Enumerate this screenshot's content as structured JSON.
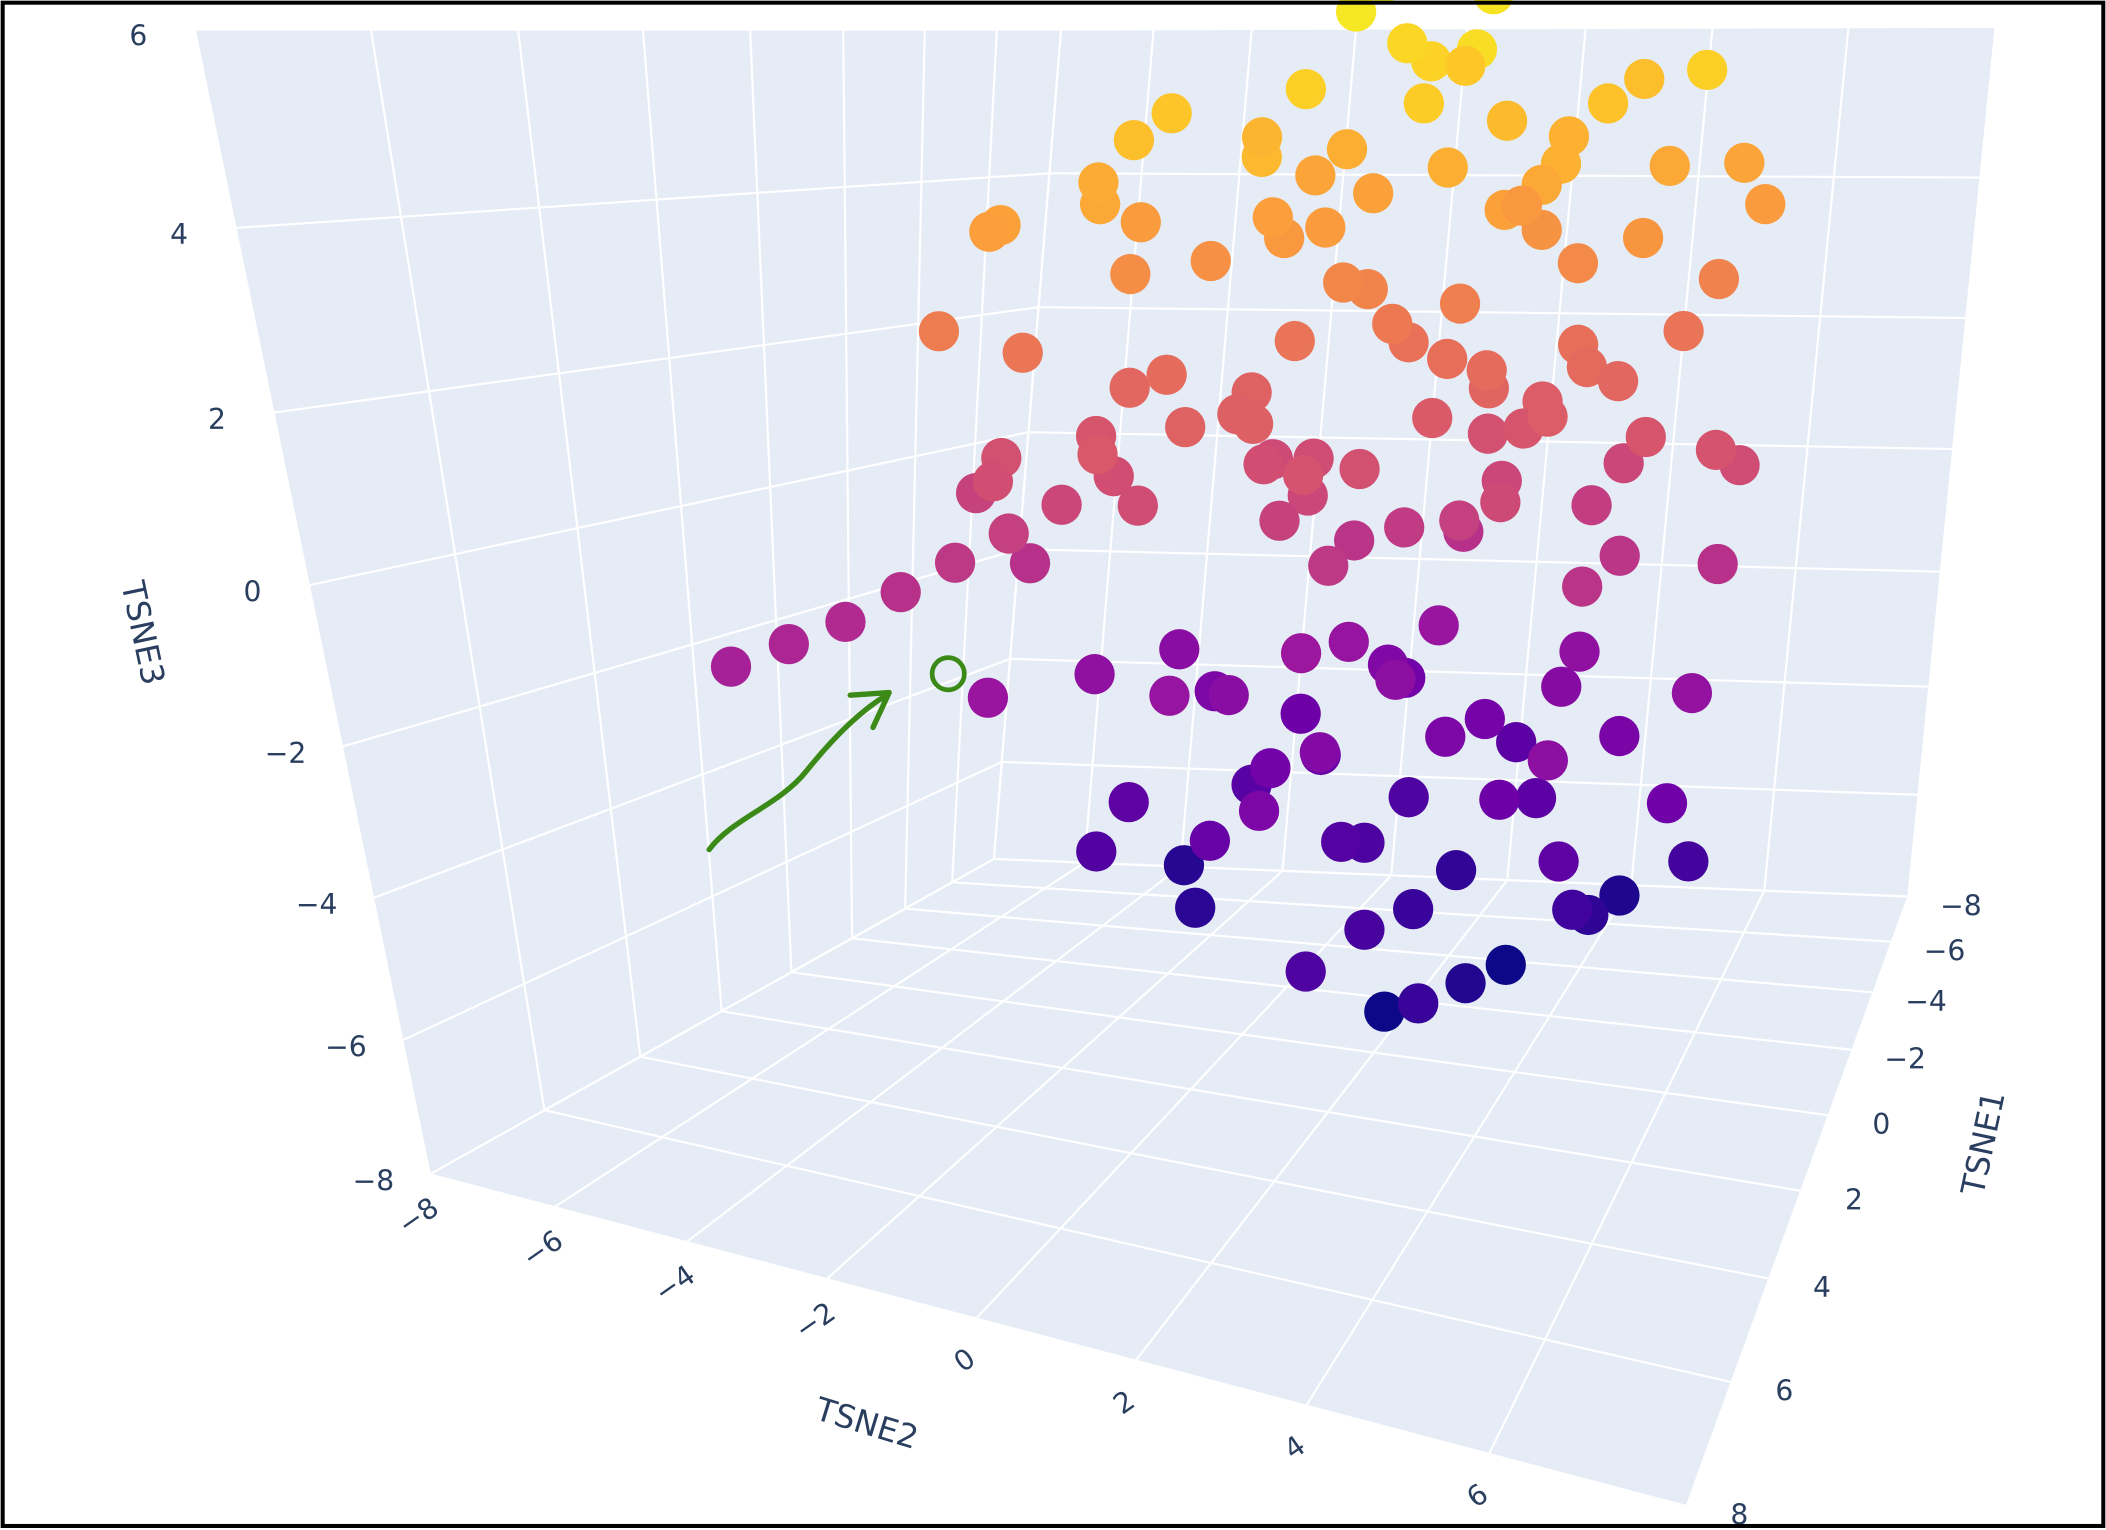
{
  "chart_data": {
    "type": "scatter3d",
    "xaxis_title": "TSNE1",
    "yaxis_title": "TSNE2",
    "zaxis_title": "TSNE3",
    "xlim": [
      -8,
      8
    ],
    "ylim": [
      -8,
      8
    ],
    "zlim": [
      -8,
      6
    ],
    "xticks": [
      {
        "value": -8,
        "label": "−8"
      },
      {
        "value": -6,
        "label": "−6"
      },
      {
        "value": -4,
        "label": "−4"
      },
      {
        "value": -2,
        "label": "−2"
      },
      0,
      2,
      4,
      6,
      8
    ],
    "yticks": [
      {
        "value": -8,
        "label": "−8"
      },
      {
        "value": -6,
        "label": "−6"
      },
      {
        "value": -4,
        "label": "−4"
      },
      {
        "value": -2,
        "label": "−2"
      },
      0,
      2,
      4,
      6
    ],
    "zticks": [
      {
        "value": -8,
        "label": "−8"
      },
      {
        "value": -6,
        "label": "−6"
      },
      {
        "value": -4,
        "label": "−4"
      },
      {
        "value": -2,
        "label": "−2"
      },
      0,
      2,
      4,
      6
    ],
    "grid": true,
    "colorscale": [
      "#0d0887",
      "#46039f",
      "#7201a8",
      "#9c179e",
      "#bd3786",
      "#d8576b",
      "#ed7953",
      "#fb9f3a",
      "#fdca26",
      "#f0f921"
    ],
    "x": [
      0,
      1,
      -1,
      2,
      -2,
      0,
      1,
      -1,
      3,
      -3,
      0,
      2,
      -2,
      1,
      -1,
      2,
      -3,
      0,
      3,
      -2,
      1,
      -1,
      4,
      -4,
      0,
      2,
      -2,
      1,
      -1,
      3,
      -3,
      0,
      4,
      -4,
      2,
      -2,
      0,
      1,
      -1,
      3,
      0,
      1,
      -1,
      2,
      -2,
      0,
      1,
      -1,
      3,
      -3,
      0,
      2,
      -2,
      1,
      -1,
      2,
      -3,
      0,
      3,
      -2,
      1,
      -1,
      4,
      -4,
      0,
      2,
      -2,
      1,
      -1,
      3,
      -3,
      0,
      4,
      -4,
      2,
      -2,
      0,
      1,
      -1,
      3,
      2,
      -2,
      1,
      -3,
      3,
      4,
      -4,
      0,
      2,
      -1,
      5,
      -5,
      1,
      3,
      0,
      -2,
      2,
      -1,
      1,
      0,
      5,
      4.5,
      4,
      3.5,
      3,
      2.5,
      2,
      1.5,
      0,
      1,
      -1,
      2,
      0,
      1,
      2,
      3,
      1,
      2,
      -1,
      0,
      3,
      -2,
      1,
      2,
      -1,
      0,
      3,
      1,
      2,
      0,
      -1,
      4,
      2,
      -2,
      1,
      3,
      -3,
      0,
      4,
      -1,
      2,
      3,
      1,
      -2,
      0,
      4,
      5,
      -3,
      2,
      1,
      -1,
      3,
      5,
      0,
      -4,
      4,
      -2,
      6
    ],
    "y": [
      1,
      2,
      0,
      3,
      2,
      3,
      -1,
      4,
      1,
      1,
      -2,
      0,
      -1,
      4,
      2,
      5,
      3,
      5,
      -1,
      5,
      1,
      -3,
      2,
      2,
      0,
      2,
      0,
      6,
      6,
      4,
      -1,
      -4,
      0,
      4,
      -3,
      3,
      2,
      3,
      1,
      2,
      1,
      2,
      0,
      3,
      2,
      3,
      -1,
      4,
      1,
      1,
      -2,
      0,
      -1,
      4,
      2,
      5,
      3,
      5,
      -1,
      5,
      1,
      -3,
      2,
      2,
      0,
      2,
      0,
      6,
      6,
      4,
      -1,
      -4,
      0,
      4,
      -3,
      3,
      2,
      3,
      1,
      2,
      1,
      4,
      5,
      2,
      -2,
      4,
      0,
      -5,
      6,
      -5,
      1,
      3,
      -3,
      5,
      4,
      -3,
      4,
      3,
      0,
      6,
      -5,
      -4.5,
      -4,
      -3.5,
      -3,
      -2.5,
      -2,
      -1.5,
      2,
      3,
      1,
      4,
      4,
      2,
      3,
      4,
      4,
      5,
      3,
      1,
      2,
      2,
      0,
      1,
      4,
      5,
      5,
      5,
      2,
      3,
      2,
      3,
      6,
      4,
      1,
      0,
      1,
      0,
      1,
      5,
      0,
      3,
      6,
      0,
      6,
      5,
      2,
      3,
      -1,
      -2,
      -1,
      -1,
      4,
      -1,
      1,
      -2,
      -2,
      3
    ],
    "z": [
      5.5,
      5,
      4.8,
      4.6,
      5.2,
      4.2,
      4.5,
      4.4,
      4,
      4.7,
      4.3,
      5.8,
      4.1,
      3.9,
      3.8,
      4.3,
      3.9,
      3.6,
      3.7,
      4.8,
      6,
      3.6,
      3.5,
      3.4,
      3.3,
      3.4,
      3.2,
      3.5,
      3.2,
      3.1,
      3.1,
      3.4,
      3.2,
      3,
      3.3,
      3.6,
      4.9,
      5.4,
      5.9,
      3.8,
      2.5,
      2,
      1.8,
      1.6,
      2.2,
      1.2,
      1.5,
      1.4,
      1,
      1.7,
      1.3,
      2.8,
      1.1,
      0.9,
      0.8,
      1.3,
      0.9,
      0.6,
      0.7,
      1.8,
      0,
      0.6,
      0.5,
      0.4,
      0.3,
      0.4,
      0.2,
      0.5,
      0.2,
      0.1,
      0.1,
      0.4,
      0.2,
      0,
      0.3,
      0.6,
      -0.5,
      -0.3,
      -0.8,
      -0.6,
      -0.2,
      -0.4,
      -0.7,
      -0.9,
      1.9,
      1.5,
      2.4,
      2.1,
      2.3,
      -0.2,
      1.1,
      1.6,
      -0.9,
      -0.8,
      2.6,
      2.7,
      2.9,
      0,
      1,
      -0.9,
      -1.6,
      -1.4,
      -1.2,
      -0.9,
      -0.6,
      -0.3,
      0,
      0.3,
      -2.5,
      -3,
      -2.2,
      -3.5,
      -4,
      -4.5,
      -5,
      -5.5,
      -6,
      -4.8,
      -3.2,
      -3.6,
      -2.8,
      -2.1,
      -2.6,
      -3.3,
      -2.7,
      -3.1,
      -3.9,
      -5.2,
      -4.2,
      -5.1,
      -4.4,
      -4.6,
      -3.4,
      -2.4,
      -2,
      -2.2,
      -2.9,
      -4.1,
      -3.7,
      -5.6,
      -5.3,
      -6,
      -2.3,
      -3.5,
      -4.7,
      -2.5,
      -3,
      -4,
      -3.9,
      -2.4,
      -3,
      -4.3,
      -5,
      -5.4,
      -3.3,
      -2.1,
      -2.6,
      -4.4
    ]
  }
}
